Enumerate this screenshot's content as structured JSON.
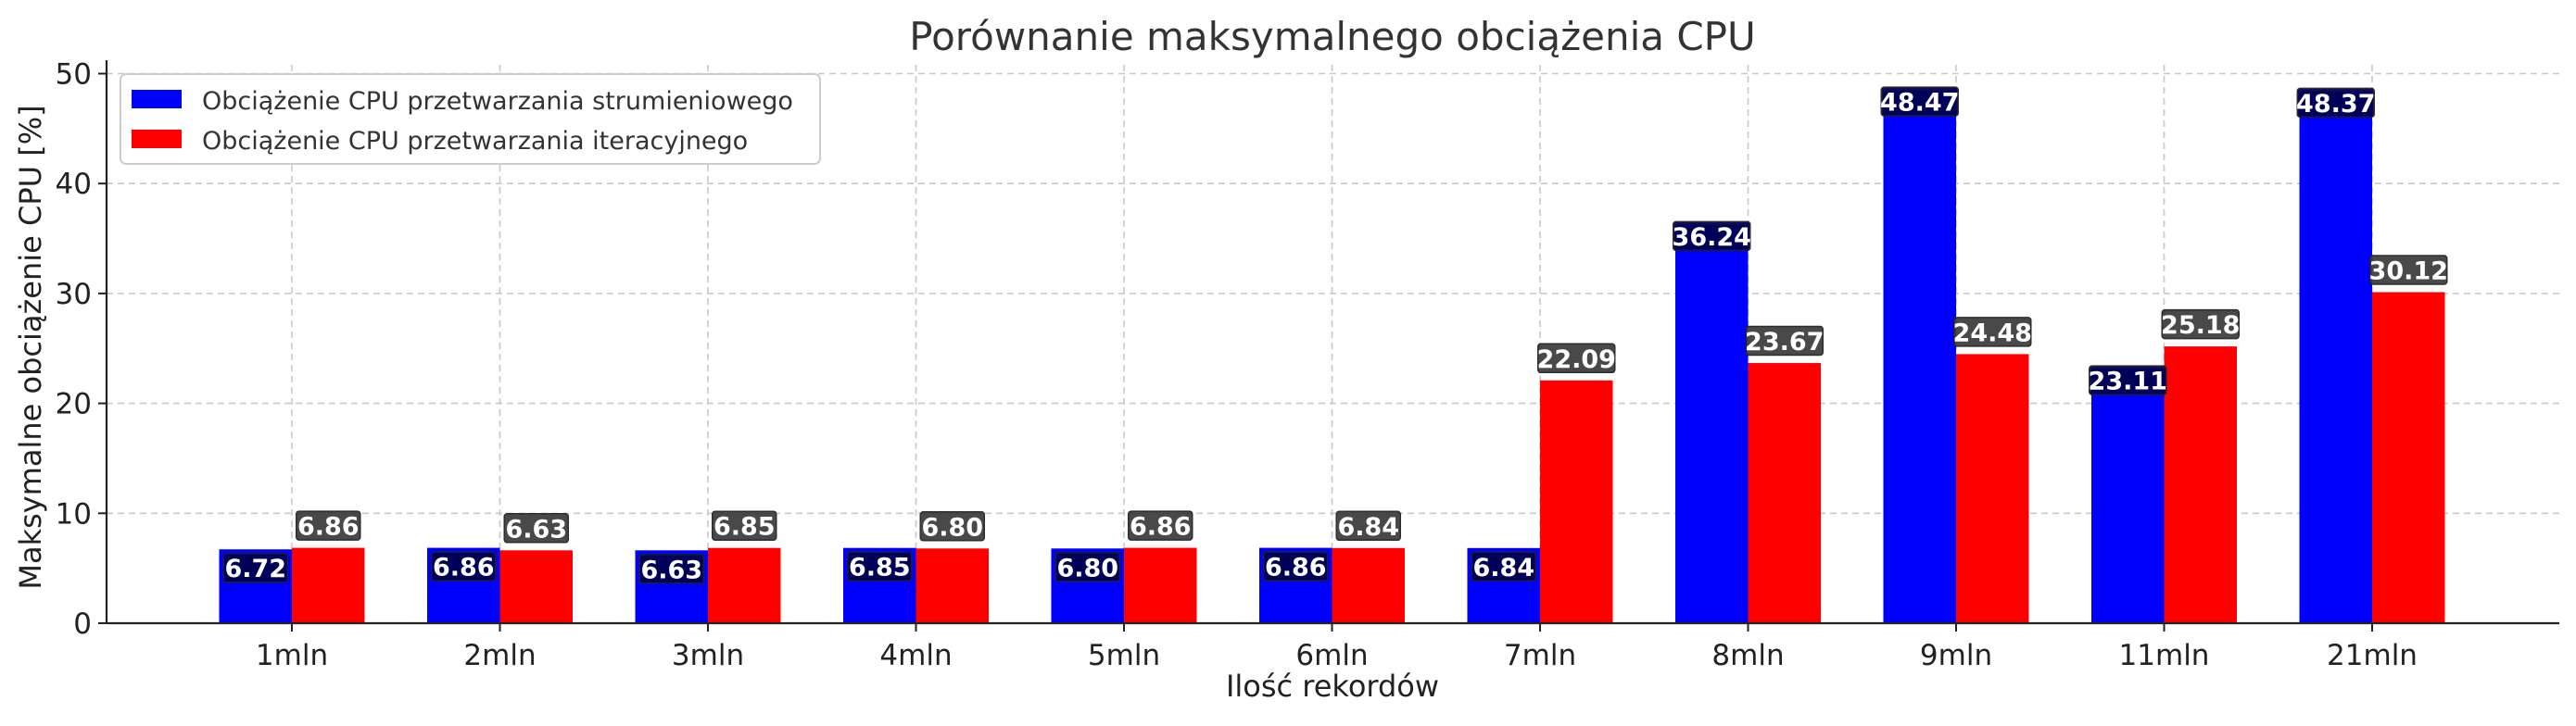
{
  "chart_data": {
    "type": "bar",
    "title": "Porównanie maksymalnego obciążenia CPU",
    "xlabel": "Ilość rekordów",
    "ylabel": "Maksymalne obciążenie CPU [%]",
    "categories": [
      "1mln",
      "2mln",
      "3mln",
      "4mln",
      "5mln",
      "6mln",
      "7mln",
      "8mln",
      "9mln",
      "11mln",
      "21mln"
    ],
    "series": [
      {
        "name": "Obciążenie CPU przetwarzania strumieniowego",
        "color": "#0000ff",
        "label_bg": "#000050",
        "values": [
          6.72,
          6.86,
          6.63,
          6.85,
          6.8,
          6.86,
          6.84,
          36.24,
          48.47,
          23.11,
          48.37
        ],
        "labels": [
          "6.72",
          "6.86",
          "6.63",
          "6.85",
          "6.80",
          "6.86",
          "6.84",
          "36.24",
          "48.47",
          "23.11",
          "48.37"
        ]
      },
      {
        "name": "Obciążenie CPU przetwarzania iteracyjnego",
        "color": "#ff0000",
        "label_bg": "#404040",
        "values": [
          6.86,
          6.63,
          6.85,
          6.8,
          6.86,
          6.84,
          22.09,
          23.67,
          24.48,
          25.18,
          30.12
        ],
        "labels": [
          "6.86",
          "6.63",
          "6.85",
          "6.80",
          "6.86",
          "6.84",
          "22.09",
          "23.67",
          "24.48",
          "25.18",
          "30.12"
        ]
      }
    ],
    "yticks": [
      0,
      10,
      20,
      30,
      40,
      50
    ],
    "ytick_labels": [
      "0",
      "10",
      "20",
      "30",
      "40",
      "50"
    ],
    "ylim": [
      0,
      50.8
    ],
    "grid": true,
    "legend_position": "top-left"
  }
}
